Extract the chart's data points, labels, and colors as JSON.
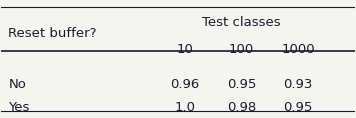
{
  "header_group": "Test classes",
  "col_headers": [
    "10",
    "100",
    "1000"
  ],
  "row_label_header": "Reset buffer?",
  "rows": [
    {
      "label": "No",
      "values": [
        "0.96",
        "0.95",
        "0.93"
      ]
    },
    {
      "label": "Yes",
      "values": [
        "1.0",
        "0.98",
        "0.95"
      ]
    }
  ],
  "bg_color": "#f5f5f0",
  "text_color": "#1a1a2e",
  "font_size": 9.5,
  "header_font_size": 9.5
}
